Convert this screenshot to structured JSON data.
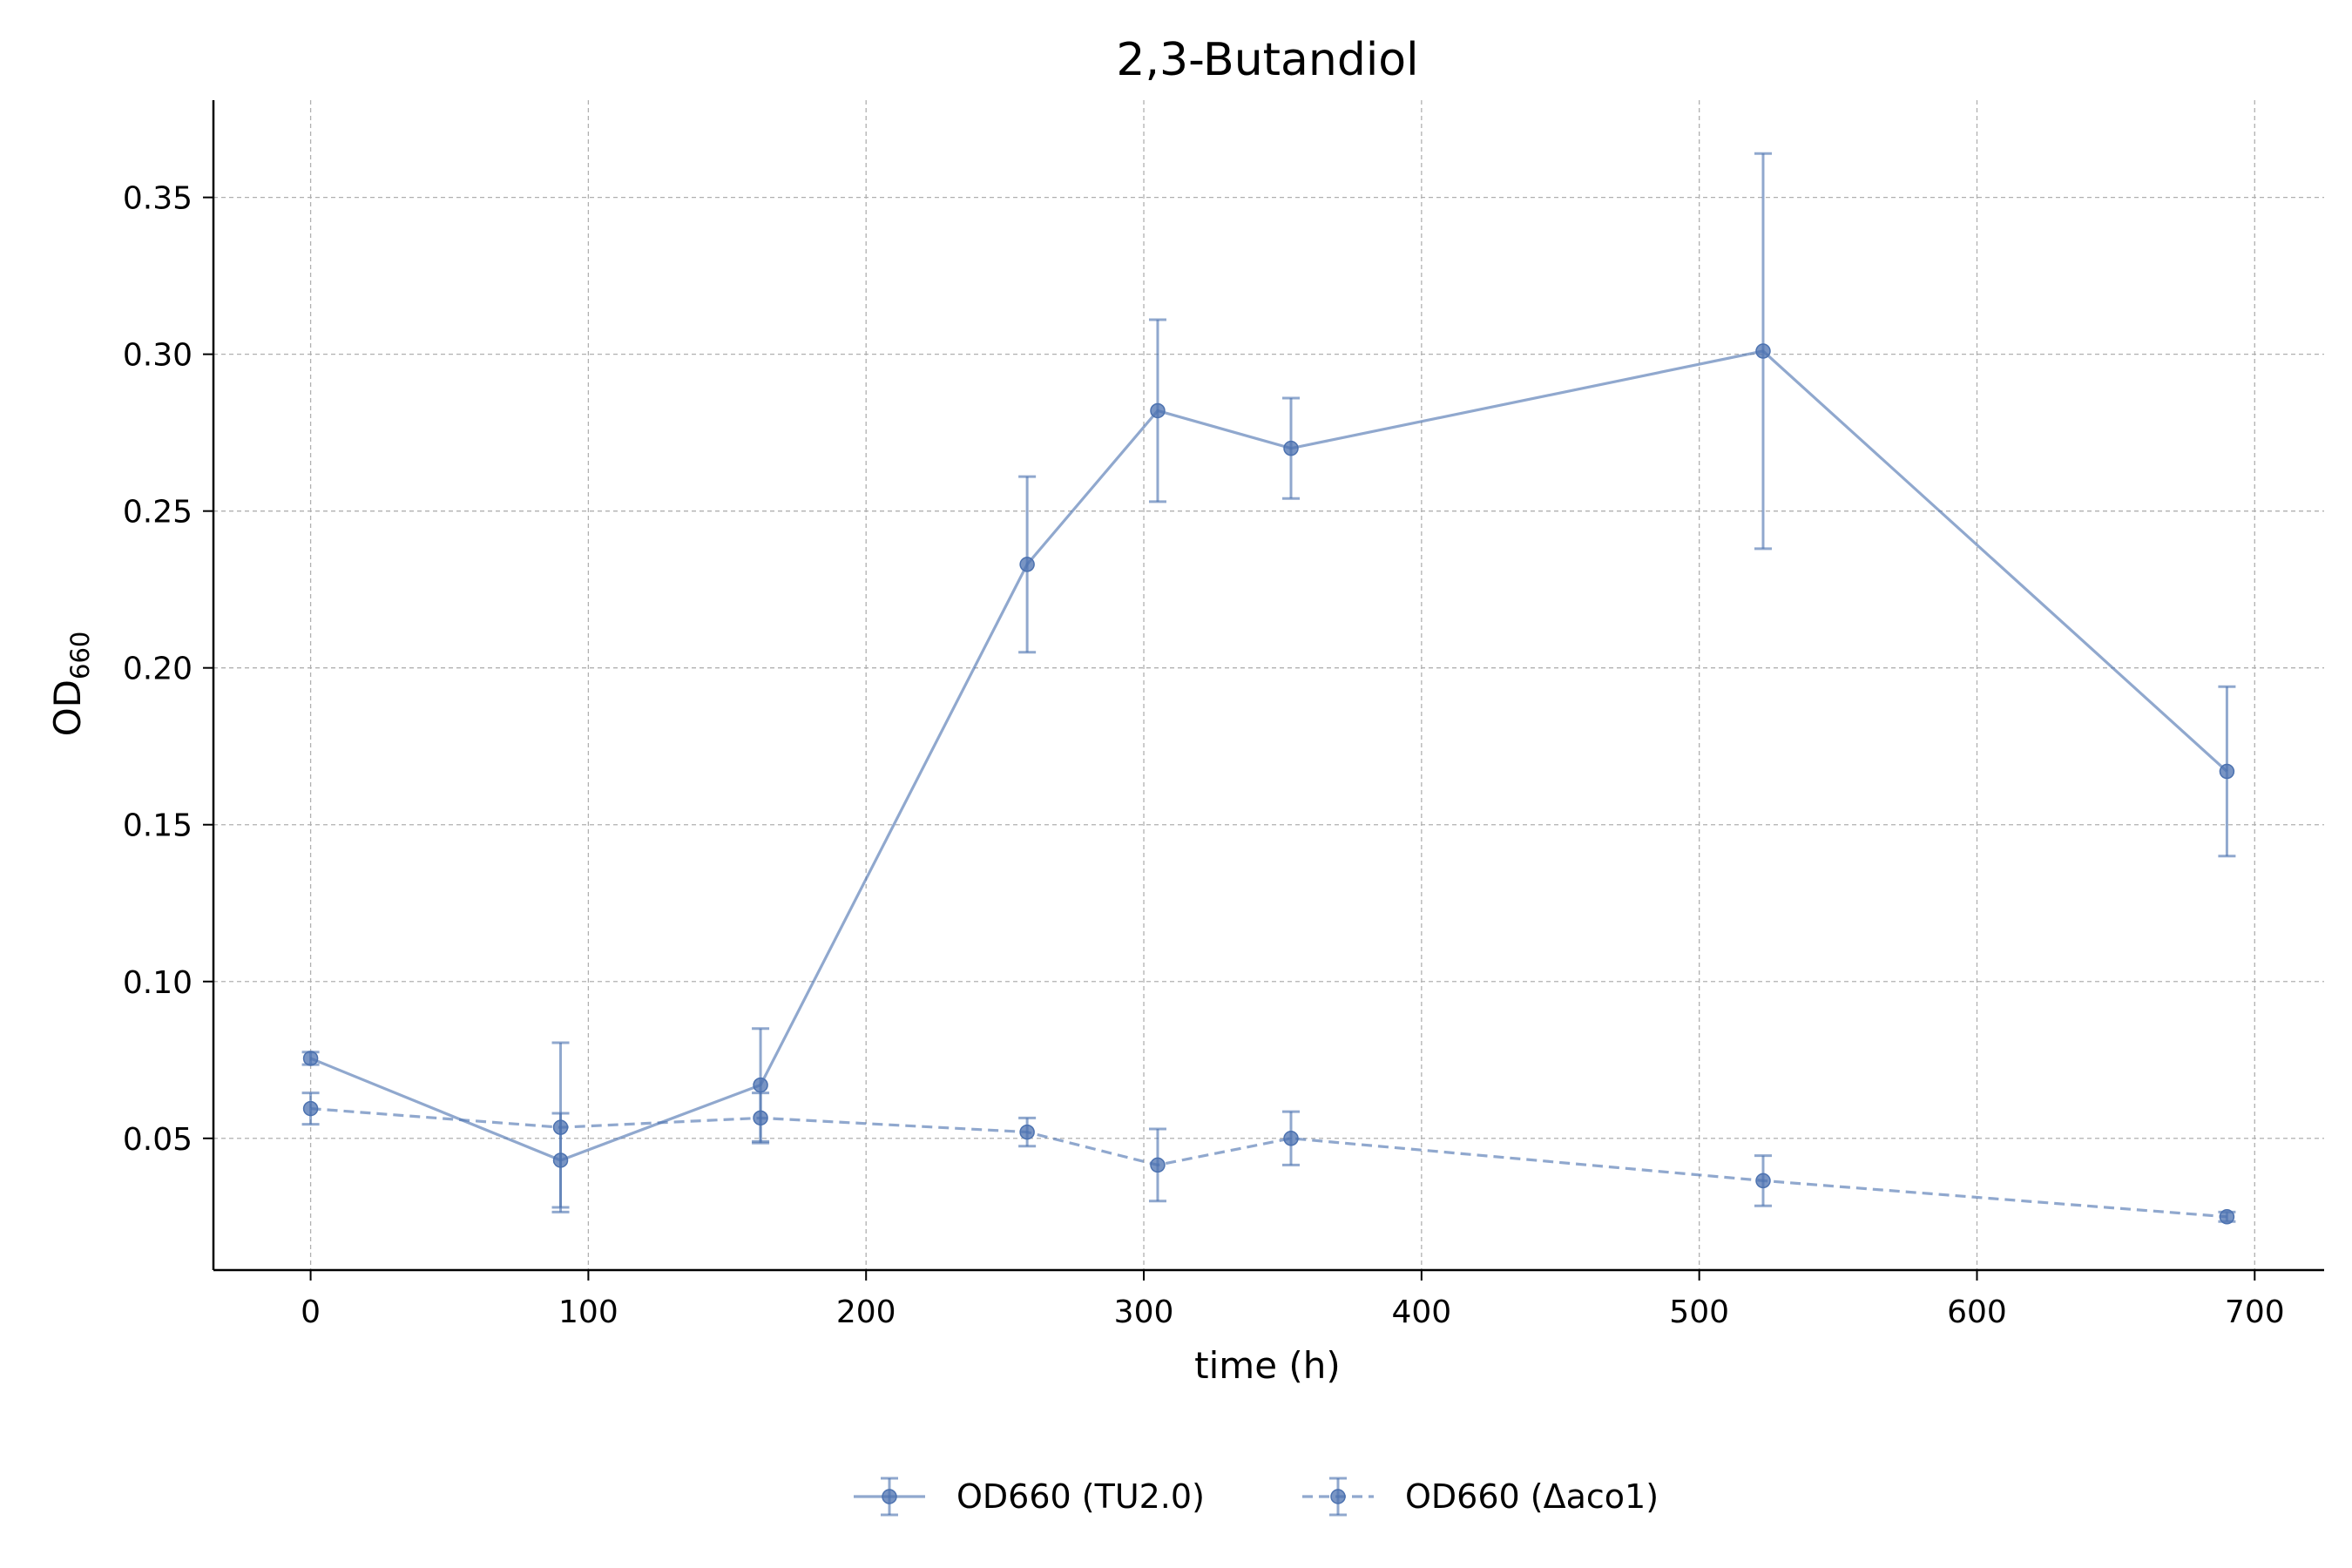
{
  "chart_data": {
    "type": "line",
    "title": "2,3-Butandiol",
    "xlabel": "time (h)",
    "ylabel_main": "OD",
    "ylabel_sub": "660",
    "xlim": [
      -35,
      725
    ],
    "ylim": [
      0.008,
      0.381
    ],
    "xticks": [
      0,
      100,
      200,
      300,
      400,
      500,
      600,
      700
    ],
    "yticks": [
      0.05,
      0.1,
      0.15,
      0.2,
      0.25,
      0.3,
      0.35
    ],
    "ytick_labels": [
      "0.05",
      "0.10",
      "0.15",
      "0.20",
      "0.25",
      "0.30",
      "0.35"
    ],
    "grid": true,
    "legend_position": "bottom-center",
    "color": "#4c72b0",
    "series": [
      {
        "name": "OD660 (TU2.0)",
        "line_style": "solid",
        "x": [
          0,
          90,
          162,
          258,
          305,
          353,
          523,
          690
        ],
        "y": [
          0.0755,
          0.043,
          0.067,
          0.233,
          0.282,
          0.27,
          0.301,
          0.167
        ],
        "err": [
          0.002,
          0.015,
          0.018,
          0.028,
          0.029,
          0.016,
          0.063,
          0.027
        ]
      },
      {
        "name": "OD660 (Δaco1)",
        "line_style": "dashed",
        "x": [
          0,
          90,
          162,
          258,
          305,
          353,
          523,
          690
        ],
        "y": [
          0.0595,
          0.0535,
          0.0565,
          0.052,
          0.0415,
          0.05,
          0.0365,
          0.025
        ],
        "err": [
          0.005,
          0.027,
          0.008,
          0.0045,
          0.0115,
          0.0085,
          0.008,
          0.0015
        ]
      }
    ]
  }
}
